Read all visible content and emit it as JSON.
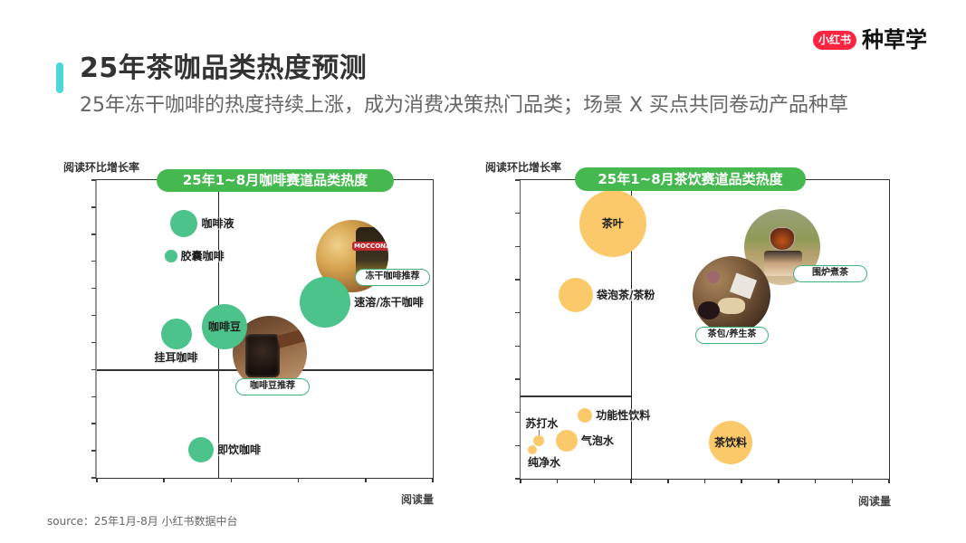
{
  "header": {
    "title": "25年茶咖品类热度预测",
    "subtitle": "25年冻干咖啡的热度持续上涨，成为消费决策热门品类；场景 X 买点共同卷动产品种草",
    "accent_color": "#4dd6dc"
  },
  "brand": {
    "badge": "小红书",
    "name": "种草学",
    "badge_color": "#ff2442"
  },
  "pill_color": "#45b94f",
  "callouts": {
    "coffee": [
      {
        "label": "冻干咖啡推荐",
        "photo_brand": "MOCCONA"
      },
      {
        "label": "咖啡豆推荐"
      }
    ],
    "tea": [
      {
        "label": "围炉煮茶"
      },
      {
        "label": "茶包/养生茶"
      }
    ]
  },
  "footer": {
    "source": "source：25年1月-8月 小红书数据中台"
  },
  "chart_data": [
    {
      "type": "scatter",
      "subtype": "bubble",
      "title": "25年1~8月咖啡赛道品类热度",
      "xlabel": "阅读量",
      "ylabel": "阅读环比增长率",
      "xlim": [
        0,
        5
      ],
      "ylim": [
        0,
        11
      ],
      "grid": false,
      "quadrant": {
        "x": 1.8,
        "y": 4,
        "h_span": [
          0,
          5
        ]
      },
      "series": [
        {
          "name": "咖啡",
          "color": "#4cc38a",
          "points": [
            {
              "label": "咖啡液",
              "x": 1.3,
              "y": 9.4,
              "size": 15,
              "label_pos": "right"
            },
            {
              "label": "胶囊咖啡",
              "x": 1.1,
              "y": 8.2,
              "size": 7,
              "label_pos": "right"
            },
            {
              "label": "咖啡豆",
              "x": 1.9,
              "y": 5.6,
              "size": 25,
              "label_pos": "center"
            },
            {
              "label": "挂耳咖啡",
              "x": 1.18,
              "y": 5.3,
              "size": 17,
              "label_pos": "below"
            },
            {
              "label": "速溶/冻干咖啡",
              "x": 3.4,
              "y": 6.5,
              "size": 28,
              "label_pos": "right"
            },
            {
              "label": "即饮咖啡",
              "x": 1.55,
              "y": 1.05,
              "size": 14,
              "label_pos": "right"
            }
          ]
        }
      ]
    },
    {
      "type": "scatter",
      "subtype": "bubble",
      "title": "25年1~8月茶饮赛道品类热度",
      "xlabel": "阅读量",
      "ylabel": "阅读环比增长率",
      "xlim": [
        0,
        10
      ],
      "ylim": [
        0,
        9
      ],
      "grid": false,
      "quadrant": {
        "x": 3,
        "y": 2.5,
        "h_span": [
          0,
          3
        ]
      },
      "series": [
        {
          "name": "茶饮",
          "color": "#fcc96a",
          "points": [
            {
              "label": "茶叶",
              "x": 2.5,
              "y": 7.7,
              "size": 37,
              "label_pos": "center"
            },
            {
              "label": "袋泡茶/茶粉",
              "x": 1.5,
              "y": 5.55,
              "size": 19,
              "label_pos": "right"
            },
            {
              "label": "功能性饮料",
              "x": 1.75,
              "y": 1.9,
              "size": 8,
              "label_pos": "right"
            },
            {
              "label": "苏打水",
              "x": 0.5,
              "y": 1.15,
              "size": 6,
              "label_pos": "above",
              "dx": 3
            },
            {
              "label": "纯净水",
              "x": 0.32,
              "y": 0.87,
              "size": 5,
              "label_pos": "below",
              "dx": 13
            },
            {
              "label": "气泡水",
              "x": 1.25,
              "y": 1.15,
              "size": 12,
              "label_pos": "right"
            },
            {
              "label": "茶饮料",
              "x": 5.7,
              "y": 1.1,
              "size": 24,
              "label_pos": "center"
            }
          ]
        }
      ]
    }
  ]
}
